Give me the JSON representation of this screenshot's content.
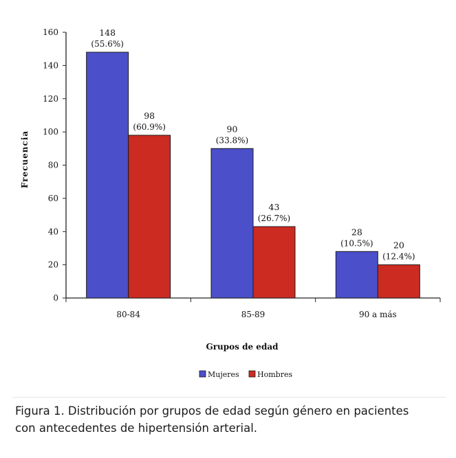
{
  "chart_data": {
    "type": "bar",
    "categories": [
      "80-84",
      "85-89",
      "90 a más"
    ],
    "series": [
      {
        "name": "Mujeres",
        "color": "#4b4fc9",
        "values": [
          148,
          90,
          28
        ],
        "labels": [
          "(55.6%)",
          "(33.8%)",
          "(10.5%)"
        ]
      },
      {
        "name": "Hombres",
        "color": "#cc2b22",
        "values": [
          98,
          43,
          20
        ],
        "labels": [
          "(60.9%)",
          "(26.7%)",
          "(12.4%)"
        ]
      }
    ],
    "xlabel": "Grupos de edad",
    "ylabel": "Frecuencia",
    "ylim": [
      0,
      160
    ],
    "yticks": [
      0,
      20,
      40,
      60,
      80,
      100,
      120,
      140,
      160
    ],
    "grid": false,
    "legend_position": "bottom-center"
  },
  "caption": {
    "line1": "Figura 1. Distribución por grupos de edad según género en pacientes",
    "line2": "con antecedentes de hipertensión arterial."
  }
}
